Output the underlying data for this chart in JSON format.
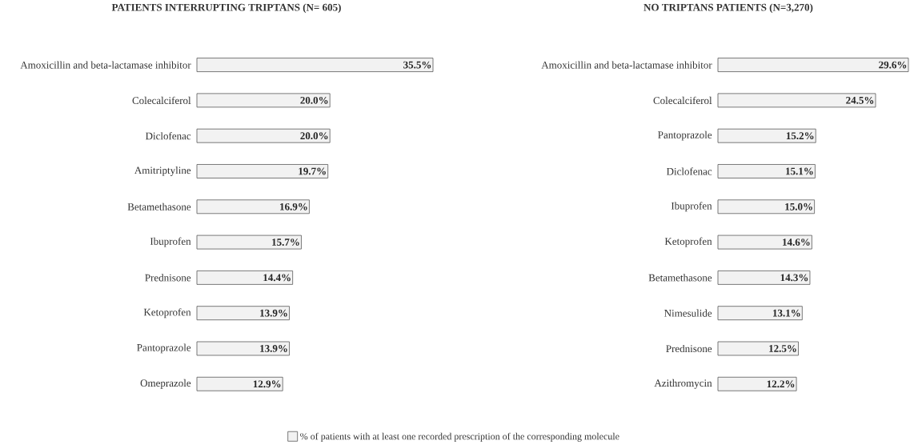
{
  "chart_data": [
    {
      "type": "bar",
      "orientation": "horizontal",
      "title": "PATIENTS INTERRUPTING TRIPTANS (N= 605)",
      "categories": [
        "Amoxicillin and beta-lactamase inhibitor",
        "Colecalciferol",
        "Diclofenac",
        "Amitriptyline",
        "Betamethasone",
        "Ibuprofen",
        "Prednisone",
        "Ketoprofen",
        "Pantoprazole",
        "Omeprazole"
      ],
      "legend": "bottom",
      "series": [
        {
          "name": "% of patients with at least one recorded prescription of the corresponding molecule",
          "color": "#f2f2f2",
          "values": [
            35.5,
            20.0,
            20.0,
            19.7,
            16.9,
            15.7,
            14.4,
            13.9,
            13.9,
            12.9
          ],
          "value_labels": [
            "35.5%",
            "20.0%",
            "20.0%",
            "19.7%",
            "16.9%",
            "15.7%",
            "14.4%",
            "13.9%",
            "13.9%",
            "12.9%"
          ]
        }
      ]
    },
    {
      "type": "bar",
      "orientation": "horizontal",
      "title": "NO TRIPTANS PATIENTS (N=3,270)",
      "categories": [
        "Amoxicillin and beta-lactamase inhibitor",
        "Colecalciferol",
        "Pantoprazole",
        "Diclofenac",
        "Ibuprofen",
        "Ketoprofen",
        "Betamethasone",
        "Nimesulide",
        "Prednisone",
        "Azithromycin"
      ],
      "series": [
        {
          "color": "#f2f2f2",
          "values": [
            29.6,
            24.5,
            15.2,
            15.1,
            15.0,
            14.6,
            14.3,
            13.1,
            12.5,
            12.2
          ],
          "value_labels": [
            "29.6%",
            "24.5%",
            "15.2%",
            "15.1%",
            "15.0%",
            "14.6%",
            "14.3%",
            "13.1%",
            "12.5%",
            "12.2%"
          ]
        }
      ]
    }
  ]
}
